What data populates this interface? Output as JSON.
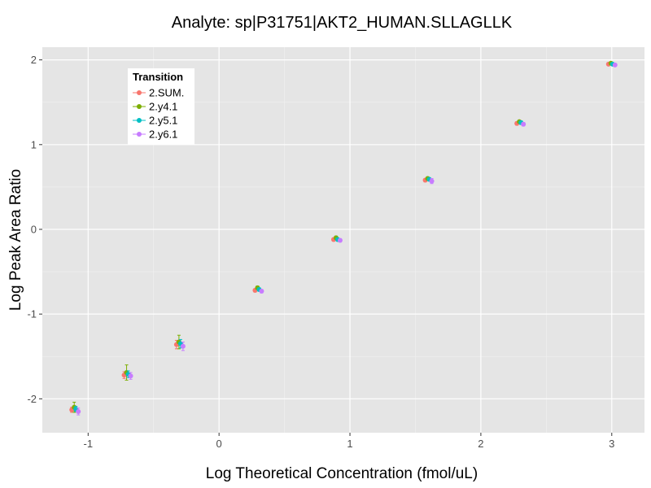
{
  "chart_data": {
    "type": "scatter",
    "title": "Analyte: sp|P31751|AKT2_HUMAN.SLLAGLLK",
    "xlabel": "Log Theoretical Concentration (fmol/uL)",
    "ylabel": "Log Peak Area Ratio",
    "xlim": [
      -1.35,
      3.25
    ],
    "ylim": [
      -2.4,
      2.15
    ],
    "x_ticks": [
      -1,
      0,
      1,
      2,
      3
    ],
    "x_tick_labels": [
      "-1",
      "0",
      "1",
      "2",
      "3"
    ],
    "y_ticks": [
      -2,
      -1,
      0,
      1,
      2
    ],
    "y_tick_labels": [
      "-2",
      "-1",
      "0",
      "1",
      "2"
    ],
    "grid": true,
    "legend_position": "top-left",
    "legend_title": "Transition",
    "series": [
      {
        "name": "2.SUM.",
        "color": "#F8766D",
        "x": [
          -1.1,
          -0.7,
          -0.3,
          0.3,
          0.9,
          1.6,
          2.3,
          3.0
        ],
        "y": [
          -2.13,
          -1.72,
          -1.36,
          -0.72,
          -0.12,
          0.58,
          1.25,
          1.95
        ],
        "err": [
          0.03,
          0.04,
          0.05,
          0.02,
          0.02,
          0.02,
          0.02,
          0.01
        ]
      },
      {
        "name": "2.y4.1",
        "color": "#7CAE00",
        "x": [
          -1.1,
          -0.7,
          -0.3,
          0.3,
          0.9,
          1.6,
          2.3,
          3.0
        ],
        "y": [
          -2.1,
          -1.69,
          -1.33,
          -0.69,
          -0.1,
          0.6,
          1.27,
          1.96
        ],
        "err": [
          0.06,
          0.09,
          0.08,
          0.02,
          0.02,
          0.02,
          0.01,
          0.01
        ]
      },
      {
        "name": "2.y5.1",
        "color": "#00BFC4",
        "x": [
          -1.1,
          -0.7,
          -0.3,
          0.3,
          0.9,
          1.6,
          2.3,
          3.0
        ],
        "y": [
          -2.12,
          -1.71,
          -1.35,
          -0.71,
          -0.12,
          0.59,
          1.26,
          1.95
        ],
        "err": [
          0.03,
          0.04,
          0.05,
          0.02,
          0.02,
          0.02,
          0.02,
          0.01
        ]
      },
      {
        "name": "2.y6.1",
        "color": "#C77CFF",
        "x": [
          -1.1,
          -0.7,
          -0.3,
          0.3,
          0.9,
          1.6,
          2.3,
          3.0
        ],
        "y": [
          -2.15,
          -1.73,
          -1.38,
          -0.73,
          -0.13,
          0.57,
          1.24,
          1.94
        ],
        "err": [
          0.04,
          0.04,
          0.05,
          0.02,
          0.02,
          0.03,
          0.02,
          0.01
        ]
      }
    ]
  }
}
